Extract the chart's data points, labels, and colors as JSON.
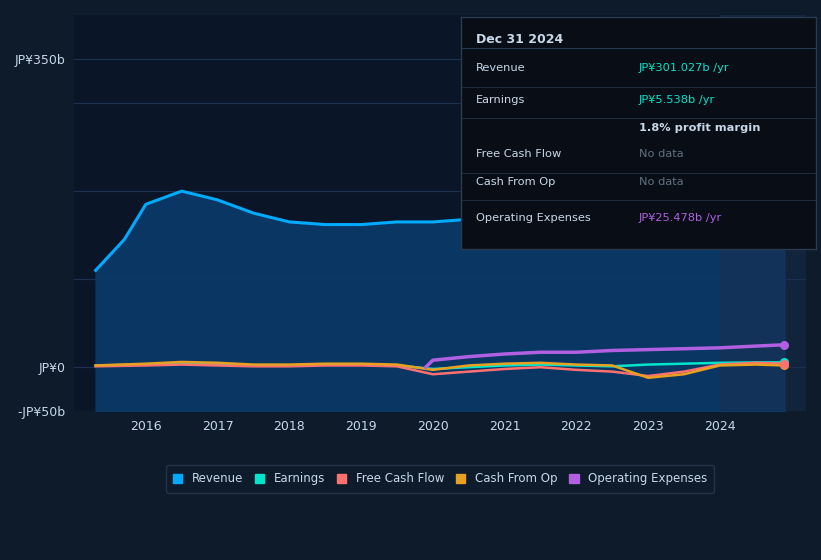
{
  "bg_color": "#0d1b2a",
  "chart_bg": "#0a1628",
  "grid_color": "#1e3050",
  "ylim": [
    -50,
    400
  ],
  "xlim": [
    2015.0,
    2025.2
  ],
  "yticks": [
    -50,
    0,
    350
  ],
  "ytick_labels": [
    "-JP¥50b",
    "JP¥0",
    "JP¥350b"
  ],
  "xtick_labels": [
    "2016",
    "2017",
    "2018",
    "2019",
    "2020",
    "2021",
    "2022",
    "2023",
    "2024"
  ],
  "xtick_positions": [
    2016,
    2017,
    2018,
    2019,
    2020,
    2021,
    2022,
    2023,
    2024
  ],
  "revenue_x": [
    2015.3,
    2015.7,
    2016.0,
    2016.5,
    2017.0,
    2017.5,
    2018.0,
    2018.5,
    2019.0,
    2019.5,
    2020.0,
    2020.5,
    2021.0,
    2021.5,
    2022.0,
    2022.5,
    2023.0,
    2023.5,
    2024.0,
    2024.5,
    2024.9
  ],
  "revenue_y": [
    110,
    145,
    185,
    200,
    190,
    175,
    165,
    162,
    162,
    165,
    165,
    168,
    170,
    175,
    175,
    195,
    240,
    295,
    320,
    310,
    301
  ],
  "earnings_x": [
    2015.3,
    2016.0,
    2016.5,
    2017.0,
    2017.5,
    2018.0,
    2018.5,
    2019.0,
    2019.5,
    2020.0,
    2020.5,
    2021.0,
    2021.5,
    2022.0,
    2022.5,
    2023.0,
    2023.5,
    2024.0,
    2024.5,
    2024.9
  ],
  "earnings_y": [
    2,
    3,
    4,
    3,
    2,
    2,
    3,
    3,
    2,
    -2,
    0,
    2,
    3,
    2,
    1,
    3,
    4,
    5,
    5.5,
    5.538
  ],
  "fcf_x": [
    2015.3,
    2016.0,
    2016.5,
    2017.0,
    2017.5,
    2018.0,
    2018.5,
    2019.0,
    2019.5,
    2020.0,
    2020.5,
    2021.0,
    2021.5,
    2022.0,
    2022.5,
    2023.0,
    2023.5,
    2024.0,
    2024.5,
    2024.9
  ],
  "fcf_y": [
    1,
    2,
    3,
    2,
    1,
    1,
    2,
    2,
    1,
    -8,
    -5,
    -2,
    0,
    -3,
    -5,
    -10,
    -5,
    3,
    5,
    4
  ],
  "cashop_x": [
    2015.3,
    2016.0,
    2016.5,
    2017.0,
    2017.5,
    2018.0,
    2018.5,
    2019.0,
    2019.5,
    2020.0,
    2020.5,
    2021.0,
    2021.5,
    2022.0,
    2022.5,
    2023.0,
    2023.5,
    2024.0,
    2024.5,
    2024.9
  ],
  "cashop_y": [
    2,
    4,
    6,
    5,
    3,
    3,
    4,
    4,
    3,
    -3,
    2,
    4,
    5,
    3,
    2,
    -12,
    -8,
    2,
    3,
    2
  ],
  "opex_x": [
    2019.9,
    2020.0,
    2020.5,
    2021.0,
    2021.5,
    2022.0,
    2022.5,
    2023.0,
    2023.5,
    2024.0,
    2024.5,
    2024.9
  ],
  "opex_y": [
    0,
    8,
    12,
    15,
    17,
    17,
    19,
    20,
    21,
    22,
    24,
    25.478
  ],
  "revenue_color": "#00aaff",
  "revenue_fill_color": "#0a3a6a",
  "earnings_color": "#00e5cc",
  "fcf_color": "#ff7070",
  "cashop_color": "#e8a020",
  "opex_color": "#b060e0",
  "text_color": "#c8d8e8",
  "tooltip_bg": "#080d16",
  "tooltip_border": "#2a3a50",
  "tooltip_title": "Dec 31 2024",
  "tooltip_revenue_label": "Revenue",
  "tooltip_revenue_value": "JP¥301.027b /yr",
  "tooltip_earnings_label": "Earnings",
  "tooltip_earnings_value": "JP¥5.538b /yr",
  "tooltip_margin": "1.8% profit margin",
  "tooltip_fcf_label": "Free Cash Flow",
  "tooltip_fcf_value": "No data",
  "tooltip_cashop_label": "Cash From Op",
  "tooltip_cashop_value": "No data",
  "tooltip_opex_label": "Operating Expenses",
  "tooltip_opex_value": "JP¥25.478b /yr",
  "legend_items": [
    "Revenue",
    "Earnings",
    "Free Cash Flow",
    "Cash From Op",
    "Operating Expenses"
  ],
  "legend_colors": [
    "#00aaff",
    "#00e5cc",
    "#ff7070",
    "#e8a020",
    "#b060e0"
  ]
}
